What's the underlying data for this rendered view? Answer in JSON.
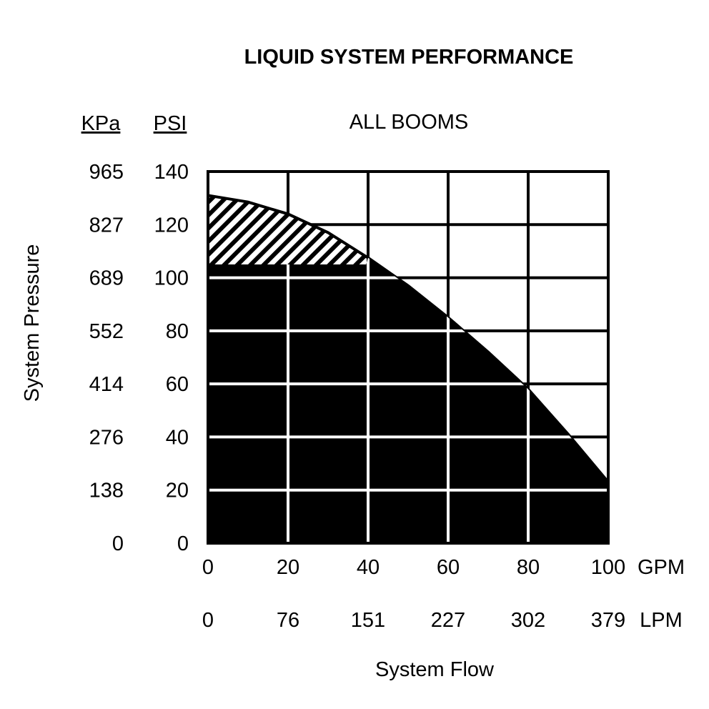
{
  "chart_data": {
    "type": "area",
    "title": "LIQUID SYSTEM PERFORMANCE",
    "subtitle": "ALL BOOMS",
    "xlabel": "System Flow",
    "ylabel": "System Pressure",
    "x_unit_primary": "GPM",
    "x_unit_secondary": "LPM",
    "y_unit_primary": "PSI",
    "y_unit_secondary": "KPa",
    "xlim": [
      0,
      100
    ],
    "ylim": [
      0,
      140
    ],
    "x_ticks": [
      0,
      20,
      40,
      60,
      80,
      100
    ],
    "x_tick_labels_gpm": [
      "0",
      "20",
      "40",
      "60",
      "80",
      "100"
    ],
    "x_tick_labels_lpm": [
      "0",
      "76",
      "151",
      "227",
      "302",
      "379"
    ],
    "y_ticks": [
      0,
      20,
      40,
      60,
      80,
      100,
      120,
      140
    ],
    "y_tick_labels_psi": [
      "0",
      "20",
      "40",
      "60",
      "80",
      "100",
      "120",
      "140"
    ],
    "y_tick_labels_kpa": [
      "0",
      "138",
      "276",
      "414",
      "552",
      "689",
      "827",
      "965"
    ],
    "grid": true,
    "capacity_curve": {
      "x": [
        0,
        10,
        20,
        30,
        40,
        50,
        60,
        70,
        80,
        90,
        100
      ],
      "y": [
        131,
        128.5,
        124,
        117,
        107.5,
        97,
        85,
        72,
        58,
        41,
        23
      ]
    },
    "operating_limit_psi": 105,
    "hatched_region": {
      "x_from": 0,
      "x_to": 39.5,
      "y_from": 105
    },
    "colors": {
      "fill": "#000000",
      "grid_on_fill": "#ffffff",
      "grid": "#000000",
      "background": "#ffffff"
    }
  }
}
